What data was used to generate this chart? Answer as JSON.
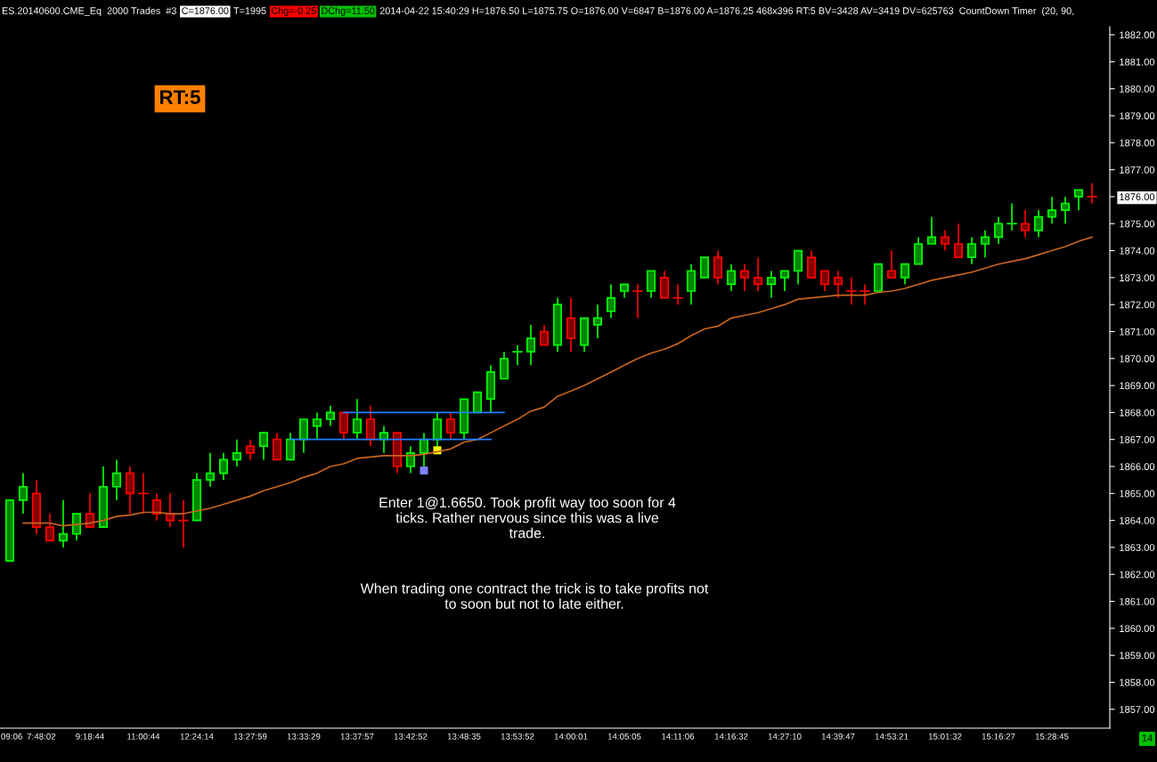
{
  "chart_data": {
    "type": "candlestick",
    "categories": [
      "09:06",
      null,
      "7:48:02",
      null,
      null,
      null,
      "9:18:44",
      null,
      null,
      null,
      "11:00:44",
      null,
      null,
      null,
      "12:24:14",
      null,
      null,
      null,
      "13:27:59",
      null,
      null,
      null,
      "13:33:29",
      null,
      null,
      null,
      "13:37:57",
      null,
      null,
      null,
      "13:42:52",
      null,
      null,
      null,
      "13:48:35",
      null,
      null,
      null,
      "13:53:52",
      null,
      null,
      null,
      "14:00:01",
      null,
      null,
      null,
      "14:05:05",
      null,
      null,
      null,
      "14:11:06",
      null,
      null,
      null,
      "14:16:32",
      null,
      null,
      null,
      "14:27:10",
      null,
      null,
      null,
      "14:39:47",
      null,
      null,
      null,
      "14:53:21",
      null,
      null,
      null,
      "15:01:32",
      null,
      null,
      null,
      "15:16:27",
      null,
      null,
      null,
      "15:28:45",
      null,
      null,
      null
    ],
    "ohlc": [
      [
        1862.5,
        1864.75,
        1862.5,
        1864.75
      ],
      [
        1864.75,
        1865.75,
        1864.25,
        1865.25
      ],
      [
        1865,
        1865.5,
        1863.5,
        1863.75
      ],
      [
        1863.75,
        1864.25,
        1863.25,
        1863.25
      ],
      [
        1863.25,
        1864.75,
        1863,
        1863.5
      ],
      [
        1863.5,
        1864.25,
        1863.25,
        1864.25
      ],
      [
        1864.25,
        1865,
        1863.75,
        1863.75
      ],
      [
        1863.75,
        1866,
        1863.75,
        1865.25
      ],
      [
        1865.25,
        1866.25,
        1864.75,
        1865.75
      ],
      [
        1865.75,
        1866,
        1864.25,
        1865
      ],
      [
        1865,
        1865.75,
        1864.25,
        1865
      ],
      [
        1864.75,
        1865,
        1864,
        1864.25
      ],
      [
        1864.25,
        1865,
        1863.75,
        1864
      ],
      [
        1864,
        1864.75,
        1863,
        1864
      ],
      [
        1864,
        1865.75,
        1864,
        1865.5
      ],
      [
        1865.5,
        1866.5,
        1865.25,
        1865.75
      ],
      [
        1865.75,
        1866.5,
        1865.5,
        1866.25
      ],
      [
        1866.25,
        1867,
        1866,
        1866.5
      ],
      [
        1866.75,
        1867,
        1866.25,
        1866.5
      ],
      [
        1866.75,
        1867.25,
        1866.25,
        1867.25
      ],
      [
        1867,
        1867.25,
        1866.25,
        1866.25
      ],
      [
        1866.25,
        1867.25,
        1866.25,
        1867
      ],
      [
        1867,
        1867.75,
        1866.5,
        1867.75
      ],
      [
        1867.5,
        1868,
        1867,
        1867.75
      ],
      [
        1867.75,
        1868.25,
        1867.5,
        1868
      ],
      [
        1868,
        1868,
        1867,
        1867.25
      ],
      [
        1867.25,
        1868.5,
        1867,
        1867.75
      ],
      [
        1867.75,
        1868.25,
        1866.75,
        1867
      ],
      [
        1867,
        1867.5,
        1866.5,
        1867.25
      ],
      [
        1867.25,
        1867.25,
        1865.75,
        1866
      ],
      [
        1866,
        1866.75,
        1865.75,
        1866.5
      ],
      [
        1866.5,
        1867.25,
        1866,
        1867
      ],
      [
        1867,
        1868,
        1866.75,
        1867.75
      ],
      [
        1867.75,
        1868,
        1867,
        1867.25
      ],
      [
        1867.25,
        1868.5,
        1867,
        1868.5
      ],
      [
        1868,
        1868.75,
        1868,
        1868.75
      ],
      [
        1868.5,
        1869.75,
        1868,
        1869.5
      ],
      [
        1869.25,
        1870.25,
        1869.25,
        1870
      ],
      [
        1870.25,
        1870.5,
        1869.75,
        1870.25
      ],
      [
        1870.25,
        1871.25,
        1869.75,
        1870.75
      ],
      [
        1871,
        1871.25,
        1870.5,
        1870.5
      ],
      [
        1870.5,
        1872.25,
        1870.25,
        1872
      ],
      [
        1871.5,
        1872.25,
        1870.25,
        1870.75
      ],
      [
        1870.5,
        1871.5,
        1870.25,
        1871.5
      ],
      [
        1871.25,
        1872,
        1870.75,
        1871.5
      ],
      [
        1871.75,
        1872.75,
        1871.5,
        1872.25
      ],
      [
        1872.5,
        1872.75,
        1872.25,
        1872.75
      ],
      [
        1872.5,
        1872.75,
        1871.5,
        1872.5
      ],
      [
        1872.5,
        1873.25,
        1872.25,
        1873.25
      ],
      [
        1873,
        1873.25,
        1872.25,
        1872.25
      ],
      [
        1872.25,
        1872.75,
        1872,
        1872.25
      ],
      [
        1872.5,
        1873.5,
        1872,
        1873.25
      ],
      [
        1873,
        1873.75,
        1873,
        1873.75
      ],
      [
        1873.75,
        1874,
        1872.75,
        1873
      ],
      [
        1872.75,
        1873.5,
        1872.5,
        1873.25
      ],
      [
        1873.25,
        1873.5,
        1872.5,
        1873
      ],
      [
        1873,
        1873.75,
        1872.5,
        1872.75
      ],
      [
        1872.75,
        1873.25,
        1872.25,
        1873
      ],
      [
        1873,
        1873.25,
        1872.5,
        1873.25
      ],
      [
        1873.25,
        1874,
        1872.75,
        1874
      ],
      [
        1873.75,
        1874,
        1873,
        1873
      ],
      [
        1873.25,
        1873.25,
        1872.5,
        1872.75
      ],
      [
        1873,
        1873.25,
        1872.25,
        1872.75
      ],
      [
        1872.5,
        1873,
        1872,
        1872.5
      ],
      [
        1872.5,
        1872.75,
        1872,
        1872.5
      ],
      [
        1872.5,
        1873.5,
        1872.5,
        1873.5
      ],
      [
        1873.25,
        1874,
        1873,
        1873
      ],
      [
        1873,
        1873.5,
        1872.75,
        1873.5
      ],
      [
        1873.5,
        1874.5,
        1873.5,
        1874.25
      ],
      [
        1874.25,
        1875.25,
        1874.25,
        1874.5
      ],
      [
        1874.5,
        1874.75,
        1874,
        1874.25
      ],
      [
        1874.25,
        1875,
        1873.75,
        1873.75
      ],
      [
        1873.75,
        1874.5,
        1873.5,
        1874.25
      ],
      [
        1874.25,
        1874.75,
        1873.75,
        1874.5
      ],
      [
        1874.5,
        1875.25,
        1874.25,
        1875
      ],
      [
        1875,
        1875.75,
        1874.75,
        1875
      ],
      [
        1875,
        1875.5,
        1874.5,
        1874.75
      ],
      [
        1874.75,
        1875.5,
        1874.5,
        1875.25
      ],
      [
        1875.25,
        1876,
        1875,
        1875.5
      ],
      [
        1875.5,
        1876,
        1875,
        1875.75
      ],
      [
        1876,
        1876.25,
        1875.5,
        1876.25
      ],
      [
        1876,
        1876.5,
        1875.75,
        1876
      ]
    ],
    "colors": [
      "#00ff00",
      "#00ff00",
      "#ff0000",
      "#ff0000",
      "#00ff00",
      "#00ff00",
      "#ff0000",
      "#00ff00",
      "#00ff00",
      "#ff0000",
      "#ff0000",
      "#ff0000",
      "#ff0000",
      "#ff0000",
      "#00ff00",
      "#00ff00",
      "#00ff00",
      "#00ff00",
      "#ff0000",
      "#00ff00",
      "#ff0000",
      "#00ff00",
      "#00ff00",
      "#00ff00",
      "#00ff00",
      "#ff0000",
      "#00ff00",
      "#ff0000",
      "#00ff00",
      "#ff0000",
      "#00ff00",
      "#00ff00",
      "#00ff00",
      "#ff0000",
      "#00ff00",
      "#00ff00",
      "#00ff00",
      "#00ff00",
      "#00ff00",
      "#00ff00",
      "#ff0000",
      "#00ff00",
      "#ff0000",
      "#00ff00",
      "#00ff00",
      "#00ff00",
      "#00ff00",
      "#ff0000",
      "#00ff00",
      "#ff0000",
      "#ff0000",
      "#00ff00",
      "#00ff00",
      "#ff0000",
      "#00ff00",
      "#ff0000",
      "#ff0000",
      "#00ff00",
      "#00ff00",
      "#00ff00",
      "#ff0000",
      "#ff0000",
      "#ff0000",
      "#ff0000",
      "#ff0000",
      "#00ff00",
      "#ff0000",
      "#00ff00",
      "#00ff00",
      "#00ff00",
      "#ff0000",
      "#ff0000",
      "#00ff00",
      "#00ff00",
      "#00ff00",
      "#00ff00",
      "#ff0000",
      "#00ff00",
      "#00ff00",
      "#00ff00",
      "#00ff00",
      "#ff0000"
    ],
    "series": [
      {
        "type": "line",
        "color": "#c8641e",
        "values": [
          null,
          1863.9,
          1863.9,
          1863.9,
          1863.8,
          1863.85,
          1863.9,
          1864.0,
          1864.15,
          1864.2,
          1864.3,
          1864.3,
          1864.25,
          1864.25,
          1864.35,
          1864.45,
          1864.6,
          1864.75,
          1864.9,
          1865.1,
          1865.25,
          1865.4,
          1865.6,
          1865.75,
          1866.0,
          1866.1,
          1866.3,
          1866.35,
          1866.4,
          1866.4,
          1866.4,
          1866.45,
          1866.55,
          1866.65,
          1866.9,
          1867.0,
          1867.25,
          1867.5,
          1867.75,
          1868.05,
          1868.2,
          1868.6,
          1868.8,
          1869.0,
          1869.25,
          1869.5,
          1869.75,
          1870.0,
          1870.2,
          1870.35,
          1870.55,
          1870.85,
          1871.1,
          1871.2,
          1871.5,
          1871.6,
          1871.7,
          1871.85,
          1872.0,
          1872.2,
          1872.25,
          1872.3,
          1872.35,
          1872.35,
          1872.35,
          1872.45,
          1872.5,
          1872.6,
          1872.75,
          1872.9,
          1873.0,
          1873.1,
          1873.2,
          1873.35,
          1873.5,
          1873.6,
          1873.7,
          1873.85,
          1874.0,
          1874.15,
          1874.35,
          1874.5
        ]
      },
      {
        "type": "line",
        "color": "#1e7fff",
        "values": [
          null,
          null,
          null,
          null,
          null,
          null,
          null,
          null,
          null,
          null,
          null,
          null,
          null,
          null,
          null,
          null,
          null,
          null,
          null,
          null,
          null,
          null,
          null,
          null,
          null,
          1868,
          1868,
          1868,
          1868,
          1868,
          1868,
          1868,
          1868,
          1868,
          1868,
          1868,
          1868,
          1868,
          null,
          null,
          null,
          null,
          null,
          null,
          null,
          null,
          null,
          null,
          null,
          null,
          null,
          null,
          null,
          null,
          null,
          null,
          null,
          null,
          null,
          null,
          null,
          null,
          null,
          null,
          null,
          null,
          null,
          null,
          null,
          null,
          null,
          null,
          null,
          null,
          null,
          null,
          null,
          null,
          null,
          null,
          null,
          null
        ]
      },
      {
        "type": "line",
        "color": "#1e7fff",
        "values": [
          null,
          null,
          null,
          null,
          null,
          null,
          null,
          null,
          null,
          null,
          null,
          null,
          null,
          null,
          null,
          null,
          null,
          null,
          null,
          null,
          null,
          1867,
          1867,
          1867,
          1867,
          1867,
          1867,
          1867,
          1867,
          1867,
          1867,
          1867,
          1867,
          1867,
          1867,
          1867,
          1867,
          null,
          null,
          null,
          null,
          null,
          null,
          null,
          null,
          null,
          null,
          null,
          null,
          null,
          null,
          null,
          null,
          null,
          null,
          null,
          null,
          null,
          null,
          null,
          null,
          null,
          null,
          null,
          null,
          null,
          null,
          null,
          null,
          null,
          null,
          null,
          null,
          null,
          null,
          null,
          null,
          null,
          null,
          null,
          null,
          null
        ]
      },
      {
        "type": "scatter",
        "color": "#8080ff",
        "marker": "square",
        "values": [
          null,
          null,
          null,
          null,
          null,
          null,
          null,
          null,
          null,
          null,
          null,
          null,
          null,
          null,
          null,
          null,
          null,
          null,
          null,
          null,
          null,
          null,
          null,
          null,
          null,
          null,
          null,
          null,
          null,
          null,
          null,
          1865.85,
          null,
          null,
          null,
          null,
          null,
          null,
          null,
          null,
          null,
          null,
          null,
          null,
          null,
          null,
          null,
          null,
          null,
          null,
          null,
          null,
          null,
          null,
          null,
          null,
          null,
          null,
          null,
          null,
          null,
          null,
          null,
          null,
          null,
          null,
          null,
          null,
          null,
          null,
          null,
          null,
          null,
          null,
          null,
          null,
          null,
          null,
          null,
          null,
          null,
          null
        ]
      },
      {
        "type": "scatter",
        "color": "#ffff00",
        "marker": "square",
        "values": [
          null,
          null,
          null,
          null,
          null,
          null,
          null,
          null,
          null,
          null,
          null,
          null,
          null,
          null,
          null,
          null,
          null,
          null,
          null,
          null,
          null,
          null,
          null,
          null,
          null,
          null,
          null,
          null,
          null,
          null,
          null,
          null,
          1866.6,
          null,
          null,
          null,
          null,
          null,
          null,
          null,
          null,
          null,
          null,
          null,
          null,
          null,
          null,
          null,
          null,
          null,
          null,
          null,
          null,
          null,
          null,
          null,
          null,
          null,
          null,
          null,
          null,
          null,
          null,
          null,
          null,
          null,
          null,
          null,
          null,
          null,
          null,
          null,
          null,
          null,
          null,
          null,
          null,
          null,
          null,
          null,
          null,
          null
        ]
      }
    ],
    "ylim": [
      1856.3,
      1882.3
    ],
    "yticks": [
      {
        "value": 1857,
        "label": "1857.00"
      },
      {
        "value": 1858,
        "label": "1858.00"
      },
      {
        "value": 1859,
        "label": "1859.00"
      },
      {
        "value": 1860,
        "label": "1860.00"
      },
      {
        "value": 1861,
        "label": "1861.00"
      },
      {
        "value": 1862,
        "label": "1862.00"
      },
      {
        "value": 1863,
        "label": "1863.00"
      },
      {
        "value": 1864,
        "label": "1864.00"
      },
      {
        "value": 1865,
        "label": "1865.00"
      },
      {
        "value": 1866,
        "label": "1866.00"
      },
      {
        "value": 1867,
        "label": "1867.00"
      },
      {
        "value": 1868,
        "label": "1868.00"
      },
      {
        "value": 1869,
        "label": "1869.00"
      },
      {
        "value": 1870,
        "label": "1870.00"
      },
      {
        "value": 1871,
        "label": "1871.00"
      },
      {
        "value": 1872,
        "label": "1872.00"
      },
      {
        "value": 1873,
        "label": "1873.00"
      },
      {
        "value": 1874,
        "label": "1874.00"
      },
      {
        "value": 1875,
        "label": "1875.00"
      },
      {
        "value": 1876,
        "label": "1876.00"
      },
      {
        "value": 1877,
        "label": "1877.00"
      },
      {
        "value": 1878,
        "label": "1878.00"
      },
      {
        "value": 1879,
        "label": "1879.00"
      },
      {
        "value": 1880,
        "label": "1880.00"
      },
      {
        "value": 1881,
        "label": "1881.00"
      },
      {
        "value": 1882,
        "label": "1882.00"
      }
    ],
    "grid": false,
    "annotations": [
      "ES.20140600.CME_Eq  2000 Trades  #3",
      "C=1876.00",
      "T=1995",
      "Chg=-0.25",
      "DChg=11.50",
      "2014-04-22 15:40:29 H=1876.50 L=1875.75 O=1876.00 V=6847 B=1876.00 A=1876.25 468x396 RT:5 BV=3428 AV=3419 DV=625763  CountDown Timer  (20, 90,",
      "RT:5",
      "Enter 1@1.6650. Took profit way too soon for 4\nticks. Rather nervous since this was a live\ntrade.",
      "When trading one contract the trick is to take profits not\nto soon but not to late either.",
      "14"
    ]
  }
}
